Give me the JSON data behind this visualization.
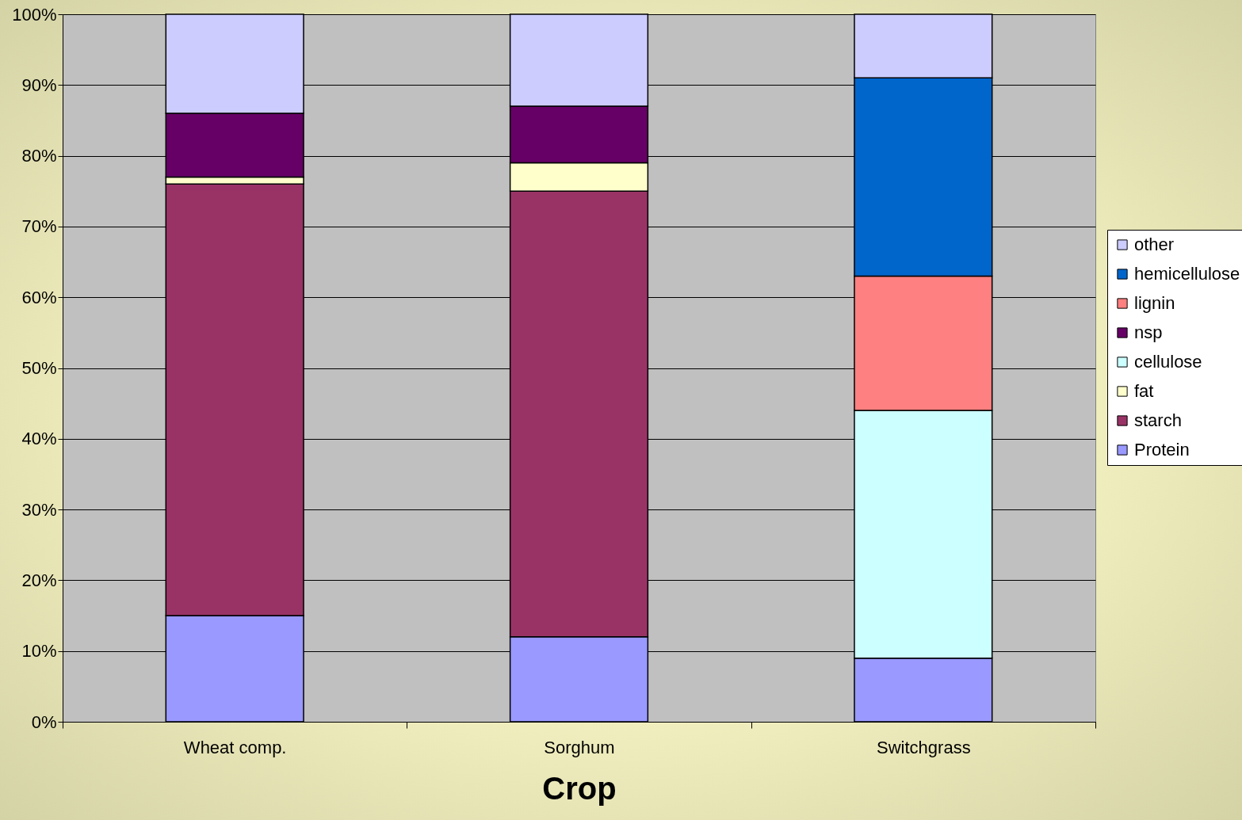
{
  "chart_data": {
    "type": "bar",
    "stacked": true,
    "xlabel": "Crop",
    "categories": [
      "Wheat comp.",
      "Sorghum",
      "Switchgrass"
    ],
    "series": [
      {
        "name": "Protein",
        "color": "#9999ff",
        "values": [
          15,
          12,
          9
        ]
      },
      {
        "name": "starch",
        "color": "#993366",
        "values": [
          61,
          63,
          null
        ]
      },
      {
        "name": "fat",
        "color": "#ffffcc",
        "values": [
          1,
          4,
          null
        ]
      },
      {
        "name": "cellulose",
        "color": "#ccffff",
        "values": [
          null,
          null,
          35
        ]
      },
      {
        "name": "nsp",
        "color": "#660066",
        "values": [
          9,
          8,
          null
        ]
      },
      {
        "name": "lignin",
        "color": "#ff8080",
        "values": [
          null,
          null,
          19
        ]
      },
      {
        "name": "hemicellulose",
        "color": "#0066cc",
        "values": [
          null,
          null,
          28
        ]
      },
      {
        "name": "other",
        "color": "#ccccff",
        "values": [
          14,
          13,
          9
        ]
      }
    ],
    "ylim": [
      0,
      100
    ],
    "yticks": [
      {
        "value": 0,
        "label": "0%"
      },
      {
        "value": 10,
        "label": "10%"
      },
      {
        "value": 20,
        "label": "20%"
      },
      {
        "value": 30,
        "label": "30%"
      },
      {
        "value": 40,
        "label": "40%"
      },
      {
        "value": 50,
        "label": "50%"
      },
      {
        "value": 60,
        "label": "60%"
      },
      {
        "value": 70,
        "label": "70%"
      },
      {
        "value": 80,
        "label": "80%"
      },
      {
        "value": 90,
        "label": "90%"
      },
      {
        "value": 100,
        "label": "100%"
      }
    ],
    "grid": "y",
    "legend": "right"
  }
}
